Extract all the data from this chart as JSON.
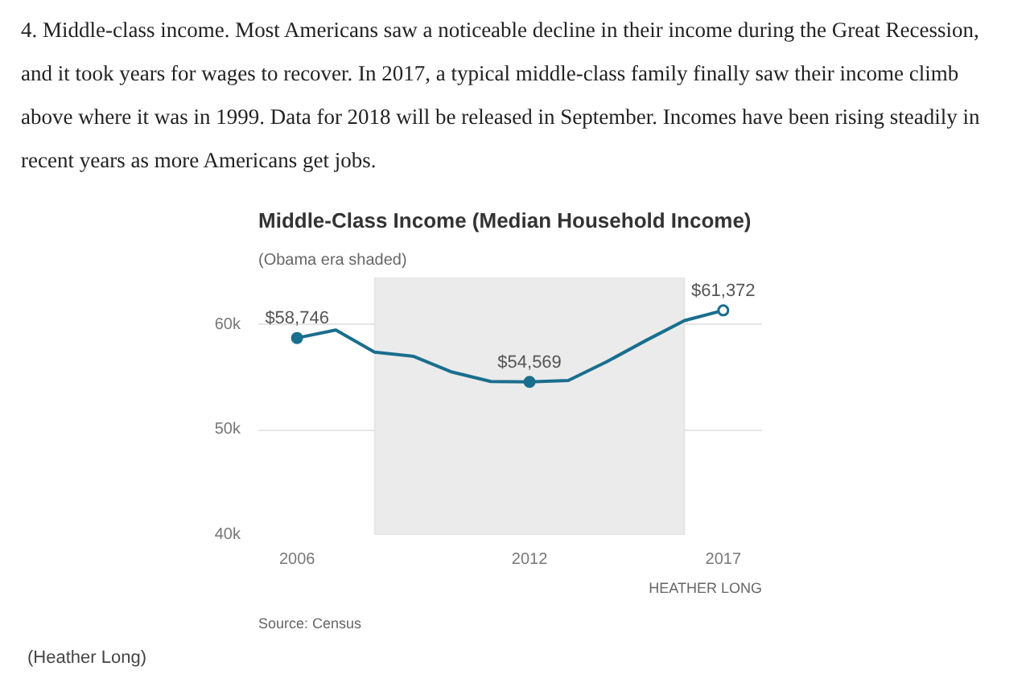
{
  "chart_data": {
    "type": "line",
    "title": "Middle-Class Income (Median Household Income)",
    "subtitle": "(Obama era shaded)",
    "x": [
      2006,
      2007,
      2008,
      2009,
      2010,
      2011,
      2012,
      2013,
      2014,
      2015,
      2016,
      2017
    ],
    "series": [
      {
        "color": "#1a6e8e",
        "values": [
          58746,
          59500,
          57400,
          57000,
          55500,
          54600,
          54569,
          54700,
          56500,
          58500,
          60400,
          61372
        ],
        "value_labels": [
          "$58,746",
          null,
          null,
          null,
          null,
          null,
          "$54,569",
          null,
          null,
          null,
          null,
          "$61,372"
        ]
      }
    ],
    "xlim": [
      2005,
      2018
    ],
    "xticks": [
      2006,
      2012,
      2017
    ],
    "ylim": [
      40000,
      64500
    ],
    "yticks": [
      {
        "value": 40000,
        "label": "40k"
      },
      {
        "value": 50000,
        "label": "50k"
      },
      {
        "value": 60000,
        "label": "60k"
      }
    ],
    "grid": "y",
    "line_style": "solid",
    "bands": [
      {
        "axis": "x",
        "from": 2008,
        "to": 2016,
        "color": "#ebebeb"
      }
    ],
    "annotations": [
      "4. Middle-class income. Most Americans saw a noticeable decline in their income during the Great Recession, and it took years for wages to recover. In 2017, a typical middle-class family finally saw their income climb above where it was in 1999. Data for 2018 will be released in September. Incomes have been rising steadily in recent years as more Americans get jobs.",
      "Source: Census",
      "HEATHER LONG",
      "(Heather Long)"
    ]
  }
}
